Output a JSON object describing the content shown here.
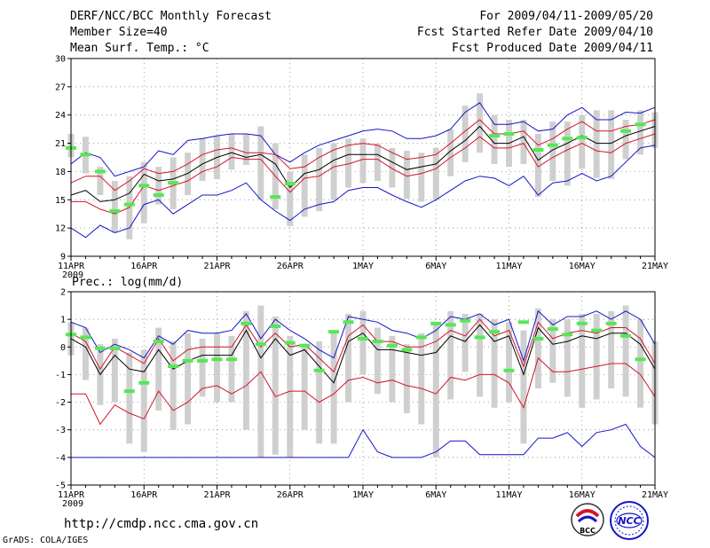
{
  "header": {
    "title": "DERF/NCC/BCC Monthly Forecast",
    "member_size": "Member Size=40",
    "panel1_label": "Mean Surf. Temp.: °C",
    "forecast_range": "For 2009/04/11-2009/05/20",
    "started_refer": "Fcst Started Refer Date 2009/04/10",
    "produced": "Fcst Produced Date 2009/04/11"
  },
  "footer": {
    "url": "http://cmdp.ncc.cma.gov.cn",
    "grads": "GrADS: COLA/IGES",
    "logo1_text": "BCC",
    "logo2_text": "NCC"
  },
  "colors": {
    "box": "#cfcfcf",
    "median": "#000000",
    "red": "#d4142a",
    "blue": "#1414c8",
    "obs": "#55e855",
    "grid": "#777777"
  },
  "chart_data": [
    {
      "type": "box",
      "title": "Mean Surf. Temp.: °C",
      "xlabel": "",
      "ylabel": "°C",
      "ylim": [
        9,
        30
      ],
      "yticks": [
        9,
        12,
        15,
        18,
        21,
        24,
        27,
        30
      ],
      "xlim": [
        0,
        40
      ],
      "xticks": [
        {
          "pos": 0,
          "label": "11APR",
          "sub": "2009"
        },
        {
          "pos": 5,
          "label": "16APR"
        },
        {
          "pos": 10,
          "label": "21APR"
        },
        {
          "pos": 15,
          "label": "26APR"
        },
        {
          "pos": 20,
          "label": "1MAY"
        },
        {
          "pos": 25,
          "label": "6MAY"
        },
        {
          "pos": 30,
          "label": "11MAY"
        },
        {
          "pos": 35,
          "label": "16MAY"
        },
        {
          "pos": 40,
          "label": "21MAY"
        }
      ],
      "box_low": [
        19.5,
        17.8,
        15.5,
        11.5,
        10.8,
        12.5,
        14.5,
        14.0,
        15.5,
        17.0,
        17.2,
        18.2,
        18.7,
        15.0,
        14.0,
        12.2,
        13.2,
        13.8,
        15.0,
        16.3,
        16.8,
        17.0,
        16.3,
        15.1,
        14.8,
        15.0,
        17.5,
        19.0,
        20.0,
        18.8,
        18.5,
        18.8,
        15.3,
        17.0,
        16.5,
        18.3,
        17.3,
        17.2,
        19.3,
        19.8,
        20.5
      ],
      "box_high": [
        22.0,
        21.7,
        18.5,
        17.0,
        17.5,
        19.0,
        18.5,
        19.5,
        20.0,
        21.5,
        21.8,
        22.0,
        22.0,
        22.8,
        21.0,
        18.0,
        19.8,
        20.5,
        21.0,
        21.5,
        21.5,
        21.0,
        20.5,
        20.2,
        20.0,
        20.5,
        22.5,
        25.0,
        26.3,
        24.0,
        23.5,
        23.5,
        22.0,
        23.3,
        23.3,
        24.0,
        24.5,
        24.5,
        23.5,
        24.5,
        24.3
      ],
      "ens_min": [
        12.0,
        11.0,
        12.3,
        11.5,
        12.0,
        14.5,
        15.0,
        13.5,
        14.5,
        15.5,
        15.5,
        16.0,
        16.8,
        15.0,
        13.8,
        12.8,
        14.0,
        14.5,
        14.8,
        16.0,
        16.3,
        16.3,
        15.5,
        14.8,
        14.2,
        15.0,
        16.0,
        17.0,
        17.5,
        17.3,
        16.5,
        17.5,
        15.5,
        16.8,
        17.0,
        17.8,
        17.0,
        17.5,
        19.0,
        20.5,
        20.8
      ],
      "red_low": [
        14.8,
        14.8,
        14.0,
        13.5,
        14.2,
        16.5,
        16.0,
        16.5,
        17.0,
        18.0,
        18.5,
        19.5,
        19.3,
        19.3,
        17.5,
        15.8,
        17.3,
        17.5,
        18.5,
        18.8,
        19.3,
        19.3,
        18.3,
        17.5,
        17.8,
        18.3,
        19.5,
        20.5,
        21.7,
        20.5,
        20.5,
        21.0,
        18.5,
        19.5,
        20.3,
        21.0,
        20.2,
        20.0,
        21.0,
        21.5,
        22.0
      ],
      "median": [
        15.5,
        16.0,
        14.8,
        15.0,
        15.7,
        17.7,
        17.0,
        17.2,
        17.8,
        18.8,
        19.5,
        20.0,
        19.5,
        19.8,
        18.8,
        16.3,
        17.8,
        18.2,
        19.2,
        19.8,
        19.8,
        19.8,
        19.0,
        18.2,
        18.5,
        18.8,
        20.2,
        21.3,
        22.8,
        21.0,
        21.0,
        21.7,
        19.2,
        20.3,
        21.0,
        21.8,
        21.0,
        21.0,
        21.8,
        22.3,
        22.8
      ],
      "red_high": [
        16.8,
        17.5,
        17.5,
        16.0,
        17.0,
        18.3,
        17.8,
        18.0,
        18.8,
        19.8,
        20.3,
        20.5,
        20.0,
        20.0,
        19.8,
        18.3,
        18.5,
        19.5,
        20.3,
        20.8,
        21.0,
        20.8,
        20.0,
        19.3,
        19.5,
        19.8,
        21.0,
        22.3,
        23.5,
        22.0,
        22.0,
        22.3,
        20.8,
        21.5,
        22.5,
        23.3,
        22.3,
        22.3,
        22.8,
        23.0,
        23.5
      ],
      "ens_max": [
        18.8,
        20.0,
        19.5,
        17.5,
        18.0,
        18.5,
        20.2,
        19.8,
        21.3,
        21.5,
        21.8,
        22.0,
        22.0,
        21.8,
        19.8,
        19.0,
        20.0,
        20.8,
        21.3,
        21.8,
        22.3,
        22.5,
        22.3,
        21.5,
        21.5,
        21.8,
        22.5,
        24.3,
        25.3,
        23.0,
        23.0,
        23.3,
        22.3,
        22.5,
        24.0,
        24.8,
        23.5,
        23.5,
        24.3,
        24.2,
        24.8
      ],
      "obs": [
        20.5,
        19.8,
        18.0,
        13.8,
        14.5,
        16.5,
        15.5,
        16.8,
        null,
        null,
        null,
        null,
        null,
        null,
        15.3,
        16.7,
        null,
        null,
        null,
        null,
        null,
        null,
        null,
        null,
        null,
        null,
        null,
        null,
        null,
        21.8,
        22.0,
        null,
        20.3,
        20.8,
        21.5,
        21.6,
        null,
        null,
        22.3,
        23.0,
        null
      ]
    },
    {
      "type": "box",
      "title": "Prec.: log(mm/d)",
      "xlabel": "",
      "ylabel": "log(mm/d)",
      "ylim": [
        -5,
        2
      ],
      "yticks": [
        -5,
        -4,
        -3,
        -2,
        -1,
        0,
        1,
        2
      ],
      "xlim": [
        0,
        40
      ],
      "xticks": [
        {
          "pos": 0,
          "label": "11APR",
          "sub": "2009"
        },
        {
          "pos": 5,
          "label": "16APR"
        },
        {
          "pos": 10,
          "label": "21APR"
        },
        {
          "pos": 15,
          "label": "26APR"
        },
        {
          "pos": 20,
          "label": "1MAY"
        },
        {
          "pos": 25,
          "label": "6MAY"
        },
        {
          "pos": 30,
          "label": "11MAY"
        },
        {
          "pos": 35,
          "label": "16MAY"
        },
        {
          "pos": 40,
          "label": "21MAY"
        }
      ],
      "box_low": [
        -0.3,
        -1.2,
        -2.1,
        -2.0,
        -3.5,
        -3.8,
        -2.3,
        -3.0,
        -2.8,
        -1.8,
        -2.0,
        -2.0,
        -3.0,
        -4.0,
        -3.9,
        -4.0,
        -3.0,
        -3.5,
        -3.5,
        -2.0,
        -1.0,
        -1.7,
        -2.0,
        -2.4,
        -2.8,
        -4.0,
        -1.9,
        -0.9,
        -1.8,
        -2.2,
        -2.0,
        -3.5,
        -1.5,
        -1.3,
        -1.8,
        -2.2,
        -1.9,
        -1.5,
        -1.8,
        -2.2,
        -2.8
      ],
      "box_high": [
        0.9,
        0.7,
        0.1,
        0.3,
        -0.2,
        -0.1,
        0.7,
        0.2,
        0.5,
        0.3,
        0.5,
        0.4,
        1.3,
        1.5,
        1.1,
        0.4,
        0.0,
        0.2,
        0.5,
        1.2,
        1.3,
        0.7,
        0.4,
        0.1,
        0.5,
        0.9,
        1.3,
        1.2,
        1.2,
        1.0,
        0.9,
        0.6,
        1.4,
        1.0,
        1.0,
        1.2,
        1.2,
        1.3,
        1.5,
        1.0,
        0.2
      ],
      "ens_min": [
        -4.0,
        -4.0,
        -4.0,
        -4.0,
        -4.0,
        -4.0,
        -4.0,
        -4.0,
        -4.0,
        -4.0,
        -4.0,
        -4.0,
        -4.0,
        -4.0,
        -4.0,
        -4.0,
        -4.0,
        -4.0,
        -4.0,
        -4.0,
        -3.0,
        -3.8,
        -4.0,
        -4.0,
        -4.0,
        -3.8,
        -3.4,
        -3.4,
        -3.9,
        -3.9,
        -3.9,
        -3.9,
        -3.3,
        -3.3,
        -3.1,
        -3.6,
        -3.1,
        -3.0,
        -2.8,
        -3.6,
        -4.0
      ],
      "red_low": [
        -1.7,
        -1.7,
        -2.8,
        -2.1,
        -2.4,
        -2.6,
        -1.6,
        -2.3,
        -2.0,
        -1.5,
        -1.4,
        -1.7,
        -1.4,
        -0.9,
        -1.8,
        -1.6,
        -1.6,
        -2.0,
        -1.7,
        -1.2,
        -1.1,
        -1.3,
        -1.2,
        -1.4,
        -1.5,
        -1.7,
        -1.1,
        -1.2,
        -1.0,
        -1.0,
        -1.3,
        -2.2,
        -0.4,
        -0.9,
        -0.9,
        -0.8,
        -0.7,
        -0.6,
        -0.6,
        -1.0,
        -1.8
      ],
      "median": [
        0.3,
        0.0,
        -1.0,
        -0.3,
        -0.8,
        -0.9,
        -0.1,
        -0.8,
        -0.5,
        -0.3,
        -0.3,
        -0.3,
        0.6,
        -0.4,
        0.3,
        -0.3,
        -0.1,
        -0.7,
        -1.3,
        0.2,
        0.5,
        -0.1,
        -0.1,
        -0.2,
        -0.3,
        -0.2,
        0.4,
        0.2,
        0.8,
        0.2,
        0.4,
        -1.0,
        0.7,
        0.1,
        0.2,
        0.4,
        0.3,
        0.5,
        0.5,
        0.1,
        -0.8
      ],
      "red_high": [
        0.5,
        0.2,
        -0.8,
        0.0,
        -0.3,
        -0.6,
        0.3,
        -0.5,
        -0.1,
        0.0,
        0.0,
        0.0,
        0.8,
        0.0,
        0.5,
        0.0,
        0.1,
        -0.4,
        -0.9,
        0.4,
        0.8,
        0.2,
        0.2,
        0.0,
        0.0,
        0.2,
        0.6,
        0.4,
        1.0,
        0.4,
        0.6,
        -0.7,
        0.9,
        0.3,
        0.5,
        0.6,
        0.5,
        0.7,
        0.7,
        0.3,
        -0.6
      ],
      "ens_max": [
        0.9,
        0.7,
        -0.2,
        0.1,
        -0.1,
        -0.4,
        0.4,
        0.1,
        0.6,
        0.5,
        0.5,
        0.6,
        1.2,
        0.3,
        1.0,
        0.6,
        0.3,
        -0.1,
        -0.4,
        1.1,
        1.0,
        0.9,
        0.6,
        0.5,
        0.3,
        0.6,
        1.1,
        1.0,
        1.2,
        0.8,
        1.0,
        -0.5,
        1.3,
        0.8,
        1.1,
        1.1,
        1.3,
        1.0,
        1.3,
        1.0,
        0.1
      ],
      "obs": [
        0.45,
        0.35,
        -0.05,
        -0.05,
        -1.6,
        -1.3,
        0.2,
        -0.7,
        -0.5,
        -0.5,
        -0.45,
        -0.45,
        0.85,
        0.1,
        0.75,
        0.15,
        0.05,
        -0.85,
        0.55,
        0.9,
        0.3,
        0.2,
        0.05,
        -0.1,
        0.35,
        0.85,
        0.8,
        0.95,
        0.35,
        0.55,
        -0.85,
        0.9,
        0.3,
        0.65,
        0.45,
        0.85,
        0.6,
        0.85,
        0.4,
        -0.45,
        null
      ]
    }
  ]
}
